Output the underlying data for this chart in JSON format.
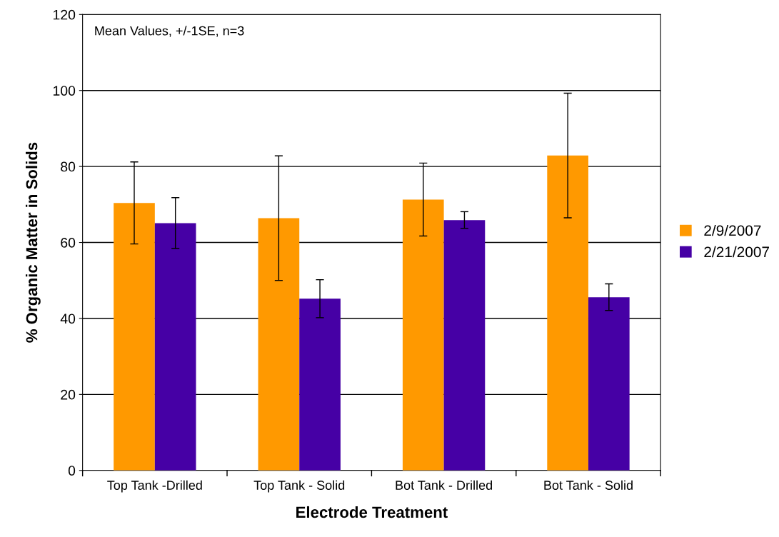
{
  "chart_data": {
    "type": "bar",
    "xlabel": "Electrode Treatment",
    "ylabel": "% Organic Matter in Solids",
    "categories": [
      "Top Tank -Drilled",
      "Top Tank - Solid",
      "Bot Tank - Drilled",
      "Bot Tank - Solid"
    ],
    "series": [
      {
        "name": "2/9/2007",
        "color": "#ff9900",
        "values": [
          70.4,
          66.4,
          71.3,
          82.9
        ],
        "errors": [
          10.8,
          16.4,
          9.6,
          16.4
        ]
      },
      {
        "name": "2/21/2007",
        "color": "#4600a5",
        "values": [
          65.1,
          45.2,
          65.9,
          45.6
        ],
        "errors": [
          6.7,
          5.0,
          2.2,
          3.5
        ]
      }
    ],
    "ylim": [
      0,
      120
    ],
    "yticks": [
      0,
      20,
      40,
      60,
      80,
      100,
      120
    ],
    "grid": "y",
    "legend": "right",
    "annotations": [
      "Mean Values, +/-1SE, n=3"
    ]
  }
}
